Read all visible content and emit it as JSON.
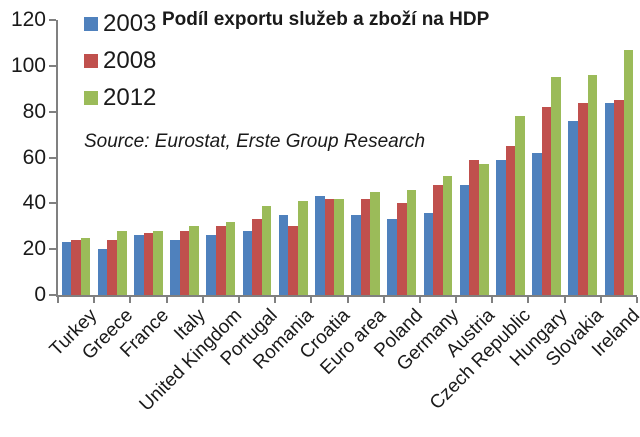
{
  "chart_data": {
    "type": "bar",
    "title": "Podíl exportu služeb a zboží na HDP",
    "source_note": "Source: Eurostat, Erste Group Research",
    "categories": [
      "Turkey",
      "Greece",
      "France",
      "Italy",
      "United Kingdom",
      "Portugal",
      "Romania",
      "Croatia",
      "Euro area",
      "Poland",
      "Germany",
      "Austria",
      "Czech Republic",
      "Hungary",
      "Slovakia",
      "Ireland"
    ],
    "series": [
      {
        "name": "2003",
        "color": "#4f81bd",
        "values": [
          23,
          20,
          26,
          24,
          26,
          28,
          35,
          43,
          35,
          33,
          36,
          48,
          59,
          62,
          76,
          84
        ]
      },
      {
        "name": "2008",
        "color": "#c0504d",
        "values": [
          24,
          24,
          27,
          28,
          30,
          33,
          30,
          42,
          42,
          40,
          48,
          59,
          65,
          82,
          84,
          85
        ]
      },
      {
        "name": "2012",
        "color": "#9bbb59",
        "values": [
          25,
          28,
          28,
          30,
          32,
          39,
          41,
          42,
          45,
          46,
          52,
          57,
          78,
          95,
          96,
          107
        ]
      }
    ],
    "ylim": [
      0,
      120
    ],
    "yticks": [
      0,
      20,
      40,
      60,
      80,
      100,
      120
    ],
    "xlabel": "",
    "ylabel": "",
    "grid": false,
    "legend_position": "top-left",
    "axis_color": "#808080",
    "text_color": "#1a1a1a",
    "background_color": "#ffffff"
  }
}
